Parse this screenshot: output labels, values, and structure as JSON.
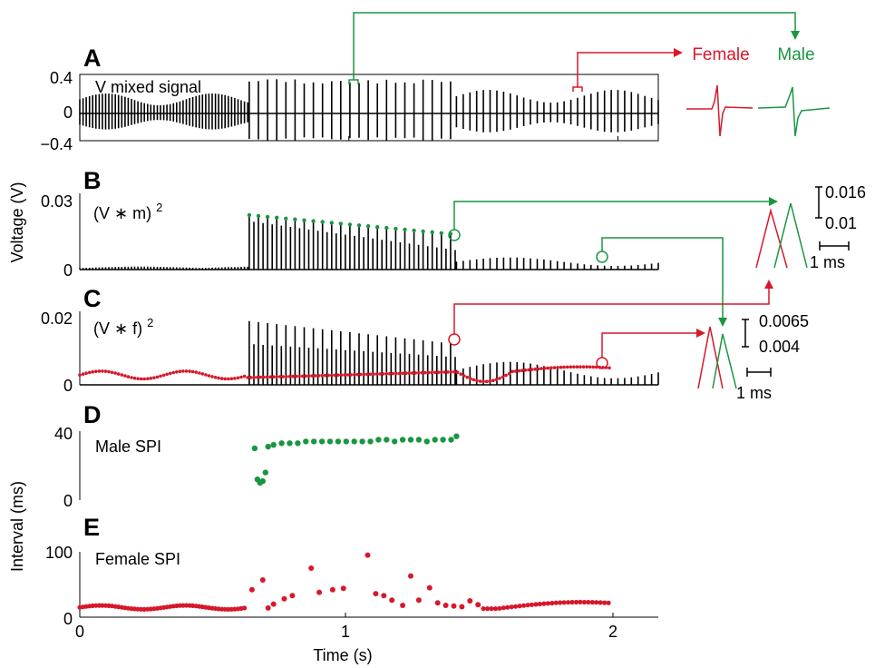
{
  "colors": {
    "male": "#1a9641",
    "female": "#d7182a",
    "trace": "#000000"
  },
  "figure": {
    "xlabel": "Time (s)",
    "ylabel_voltage": "Voltage (V)",
    "ylabel_interval": "Interval (ms)",
    "legend": {
      "female": "Female",
      "male": "Male"
    }
  },
  "chart_data": [
    {
      "id": "A",
      "type": "line",
      "panel_label": "A",
      "series_label": "V mixed signal",
      "xlim": [
        0,
        2.15
      ],
      "ylim": [
        -0.4,
        0.4
      ],
      "yticks": [
        "0.4",
        "0",
        "−0.4"
      ],
      "xticks": [
        "0",
        "1",
        "2"
      ],
      "segments": [
        {
          "t_start": 0.0,
          "t_end": 0.63,
          "spike_interval_s": 0.012,
          "envelope": [
            0.09,
            0.22
          ]
        },
        {
          "t_start": 0.63,
          "t_end": 1.4,
          "spike_interval_s": 0.034,
          "amplitude": 0.38
        },
        {
          "t_start": 1.4,
          "t_end": 2.15,
          "spike_interval_s": 0.025,
          "envelope": [
            0.12,
            0.26
          ]
        }
      ]
    },
    {
      "id": "B",
      "type": "line",
      "panel_label": "B",
      "series_label": "(V ∗ m) ",
      "superscript": "2",
      "ylim": [
        0,
        0.03
      ],
      "yticks": [
        "0.03",
        "0"
      ],
      "male_peaks": {
        "t": [
          0.63,
          1.4
        ],
        "y": [
          0.0225,
          0.0145
        ]
      },
      "inset_scale": {
        "value_top": "0.016",
        "value_bottom": "0.01",
        "time_bar": "1 ms"
      }
    },
    {
      "id": "C",
      "type": "line",
      "panel_label": "C",
      "series_label": "(V ∗ f) ",
      "superscript": "2",
      "ylim": [
        0,
        0.02
      ],
      "yticks": [
        "0.02",
        "0"
      ],
      "inset_scale": {
        "value_top": "0.0065",
        "value_bottom": "0.004",
        "time_bar": "1 ms"
      }
    },
    {
      "id": "D",
      "type": "scatter",
      "panel_label": "D",
      "series_label": "Male SPI",
      "ylim": [
        0,
        40
      ],
      "yticks": [
        "40",
        "0"
      ],
      "x": [
        0.65,
        0.66,
        0.67,
        0.68,
        0.69,
        0.7,
        0.72,
        0.75,
        0.78,
        0.81,
        0.84,
        0.87,
        0.9,
        0.93,
        0.96,
        0.99,
        1.02,
        1.05,
        1.08,
        1.11,
        1.14,
        1.17,
        1.2,
        1.23,
        1.26,
        1.29,
        1.32,
        1.35,
        1.38,
        1.4
      ],
      "y": [
        30,
        12,
        10,
        11,
        16,
        31,
        32,
        33,
        33,
        33,
        34,
        34,
        34,
        34,
        34,
        34,
        34,
        34,
        34,
        35,
        35,
        34,
        35,
        35,
        35,
        34,
        35,
        35,
        35,
        37
      ]
    },
    {
      "id": "E",
      "type": "scatter",
      "panel_label": "E",
      "series_label": "Female SPI",
      "ylim": [
        0,
        100
      ],
      "yticks": [
        "100",
        "0"
      ],
      "xticks": [
        "0",
        "1",
        "2"
      ],
      "x": [
        0.64,
        0.68,
        0.7,
        0.72,
        0.76,
        0.79,
        0.86,
        0.89,
        0.94,
        0.98,
        1.07,
        1.1,
        1.13,
        1.16,
        1.2,
        1.23,
        1.26,
        1.3,
        1.33,
        1.36,
        1.39,
        1.42,
        1.45,
        1.48
      ],
      "y": [
        42,
        57,
        14,
        20,
        28,
        33,
        75,
        38,
        42,
        44,
        95,
        36,
        33,
        26,
        18,
        63,
        26,
        45,
        22,
        18,
        17,
        16,
        25,
        19
      ]
    }
  ]
}
